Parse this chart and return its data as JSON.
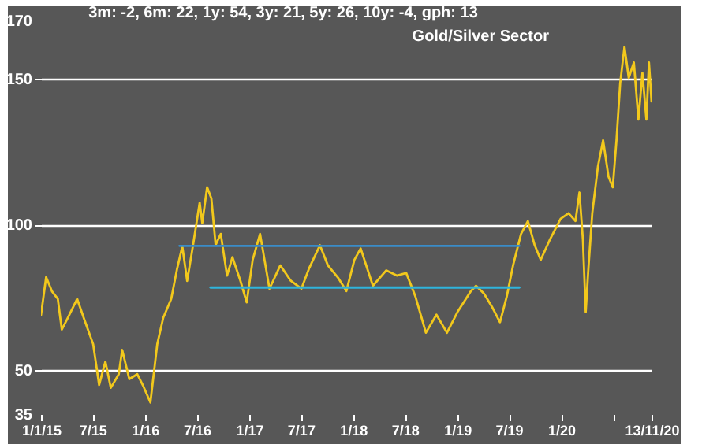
{
  "chart_data": {
    "type": "line",
    "title": "Gold/Silver Sector",
    "annotations": [
      "3m: -2,   6m: 22,   1y: 54,   3y: 21,   5y: 26,   10y: -4,   gph: 13"
    ],
    "ylim": [
      35,
      170
    ],
    "yticks": [
      35,
      50,
      100,
      150,
      170
    ],
    "grid": "y",
    "xlim": [
      "2015-01-01",
      "2020-11-13"
    ],
    "xticks": [
      {
        "value": "2015-01-01",
        "label": "1/1/15"
      },
      {
        "value": "2015-07-01",
        "label": "7/15"
      },
      {
        "value": "2016-01-01",
        "label": "1/16"
      },
      {
        "value": "2016-07-01",
        "label": "7/16"
      },
      {
        "value": "2017-01-01",
        "label": "1/17"
      },
      {
        "value": "2017-07-01",
        "label": "7/17"
      },
      {
        "value": "2018-01-01",
        "label": "1/18"
      },
      {
        "value": "2018-07-01",
        "label": "7/18"
      },
      {
        "value": "2019-01-01",
        "label": "1/19"
      },
      {
        "value": "2019-07-01",
        "label": "7/19"
      },
      {
        "value": "2020-01-01",
        "label": "1/20"
      },
      {
        "value": "2020-07-01",
        "label": null
      },
      {
        "value": "2020-11-13",
        "label": "13/11/20"
      }
    ],
    "series": [
      {
        "color": "#f2c81c",
        "x": [
          "2015-01-01",
          "2015-01-19",
          "2015-02-09",
          "2015-03-01",
          "2015-03-15",
          "2015-04-05",
          "2015-05-08",
          "2015-05-31",
          "2015-07-03",
          "2015-07-24",
          "2015-08-15",
          "2015-09-03",
          "2015-10-01",
          "2015-10-13",
          "2015-11-07",
          "2015-12-05",
          "2015-12-27",
          "2016-01-20",
          "2016-02-13",
          "2016-03-05",
          "2016-04-02",
          "2016-04-22",
          "2016-05-11",
          "2016-05-28",
          "2016-06-17",
          "2016-07-11",
          "2016-07-20",
          "2016-08-06",
          "2016-08-21",
          "2016-09-05",
          "2016-09-23",
          "2016-10-15",
          "2016-11-03",
          "2016-12-01",
          "2016-12-23",
          "2017-01-13",
          "2017-02-08",
          "2017-03-13",
          "2017-04-20",
          "2017-05-27",
          "2017-07-03",
          "2017-07-31",
          "2017-09-06",
          "2017-10-04",
          "2017-11-10",
          "2017-12-08",
          "2018-01-05",
          "2018-01-27",
          "2018-03-11",
          "2018-04-27",
          "2018-06-03",
          "2018-07-06",
          "2018-08-07",
          "2018-09-13",
          "2018-10-20",
          "2018-11-26",
          "2019-01-02",
          "2019-02-18",
          "2019-03-08",
          "2019-04-05",
          "2019-05-03",
          "2019-05-31",
          "2019-06-24",
          "2019-07-16",
          "2019-08-13",
          "2019-09-06",
          "2019-09-29",
          "2019-10-21",
          "2019-11-23",
          "2019-12-30",
          "2020-01-27",
          "2020-02-20",
          "2020-03-05",
          "2020-03-17",
          "2020-03-27",
          "2020-04-05",
          "2020-04-19",
          "2020-05-09",
          "2020-05-27",
          "2020-06-15",
          "2020-06-30",
          "2020-07-13",
          "2020-07-26",
          "2020-08-10",
          "2020-08-25",
          "2020-09-12",
          "2020-09-28",
          "2020-10-12",
          "2020-10-26",
          "2020-11-04",
          "2020-11-13"
        ],
        "values": [
          69,
          82,
          77,
          74.5,
          64,
          68,
          74.5,
          68,
          59,
          45,
          53,
          44,
          48.7,
          57,
          47,
          48.7,
          44.4,
          39,
          59,
          68,
          74.5,
          84.5,
          92.5,
          80.7,
          92.5,
          107.5,
          100.5,
          112.8,
          109,
          93,
          96.8,
          82.5,
          88.8,
          80.7,
          73.3,
          87.9,
          96.8,
          78,
          86,
          80.7,
          78,
          85.2,
          92.9,
          86,
          81.6,
          77.2,
          87.9,
          91.8,
          79,
          84.3,
          82.5,
          83.4,
          75.4,
          62.9,
          69.1,
          62.9,
          70,
          77.2,
          79,
          76.3,
          71.8,
          66.5,
          75.4,
          86,
          96.8,
          101.2,
          93.2,
          87.9,
          95,
          102,
          103.9,
          101.2,
          111,
          95,
          70,
          84.3,
          103.9,
          120,
          128.9,
          116.4,
          112.8,
          128.9,
          148.5,
          161,
          150.3,
          155.6,
          136,
          152,
          136,
          155.6,
          142.2
        ]
      },
      {
        "type": "line",
        "color": "#3a8cc8",
        "x": [
          "2016-05-01",
          "2019-08-07"
        ],
        "values": [
          92.7,
          92.7
        ]
      },
      {
        "type": "line",
        "color": "#2fb4dc",
        "x": [
          "2016-08-18",
          "2019-08-07"
        ],
        "values": [
          78.4,
          78.4
        ]
      }
    ]
  }
}
